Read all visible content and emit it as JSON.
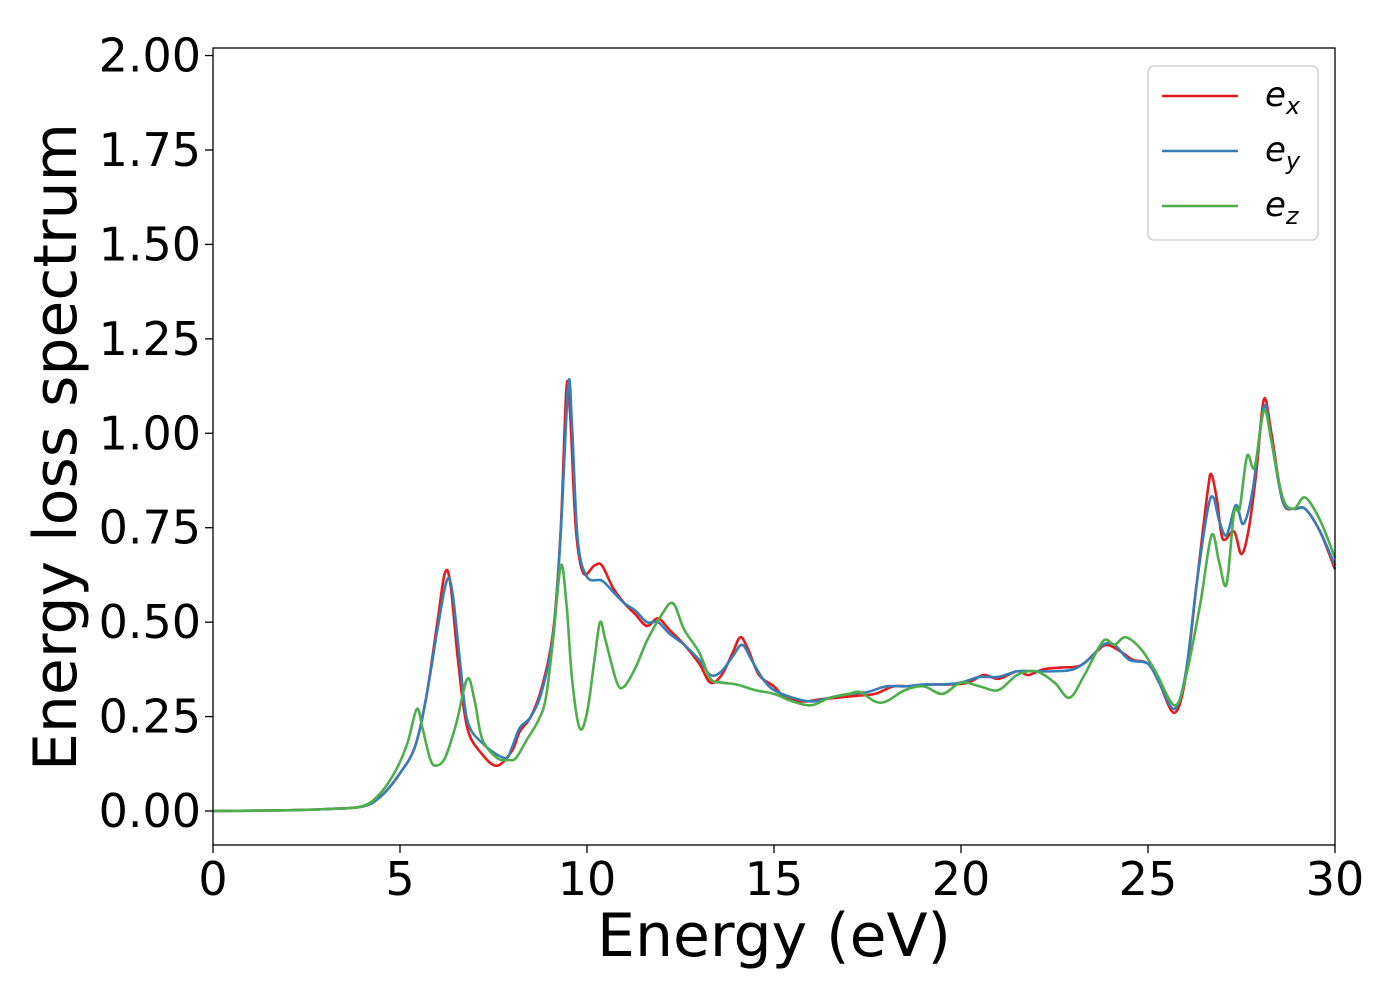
{
  "chart_data": {
    "type": "line",
    "xlabel": "Energy (eV)",
    "ylabel": "Energy loss spectrum",
    "xlim": [
      0,
      30
    ],
    "ylim": [
      -0.09,
      2.02
    ],
    "xticks": [
      0,
      5,
      10,
      15,
      20,
      25,
      30
    ],
    "xtick_labels": [
      "0",
      "5",
      "10",
      "15",
      "20",
      "25",
      "30"
    ],
    "yticks": [
      0.0,
      0.25,
      0.5,
      0.75,
      1.0,
      1.25,
      1.5,
      1.75,
      2.0
    ],
    "ytick_labels": [
      "0.00",
      "0.25",
      "0.50",
      "0.75",
      "1.00",
      "1.25",
      "1.50",
      "1.75",
      "2.00"
    ],
    "grid": false,
    "legend_position": "top-right",
    "series": [
      {
        "name": "e",
        "subscript": "x",
        "color": "#e41a1c",
        "points": [
          [
            0,
            0
          ],
          [
            2,
            0.002
          ],
          [
            3,
            0.005
          ],
          [
            4,
            0.012
          ],
          [
            4.5,
            0.04
          ],
          [
            5,
            0.1
          ],
          [
            5.4,
            0.17
          ],
          [
            5.7,
            0.3
          ],
          [
            6.0,
            0.5
          ],
          [
            6.2,
            0.63
          ],
          [
            6.35,
            0.6
          ],
          [
            6.55,
            0.4
          ],
          [
            6.8,
            0.22
          ],
          [
            7.2,
            0.15
          ],
          [
            7.6,
            0.12
          ],
          [
            8.0,
            0.16
          ],
          [
            8.2,
            0.21
          ],
          [
            8.5,
            0.25
          ],
          [
            8.8,
            0.33
          ],
          [
            9.1,
            0.48
          ],
          [
            9.3,
            0.75
          ],
          [
            9.45,
            1.12
          ],
          [
            9.55,
            1.05
          ],
          [
            9.7,
            0.75
          ],
          [
            9.9,
            0.63
          ],
          [
            10.2,
            0.65
          ],
          [
            10.4,
            0.65
          ],
          [
            10.7,
            0.59
          ],
          [
            11.0,
            0.55
          ],
          [
            11.3,
            0.52
          ],
          [
            11.6,
            0.49
          ],
          [
            11.9,
            0.51
          ],
          [
            12.2,
            0.48
          ],
          [
            12.6,
            0.44
          ],
          [
            13.0,
            0.39
          ],
          [
            13.3,
            0.34
          ],
          [
            13.6,
            0.36
          ],
          [
            13.9,
            0.42
          ],
          [
            14.1,
            0.46
          ],
          [
            14.3,
            0.43
          ],
          [
            14.6,
            0.36
          ],
          [
            15.0,
            0.33
          ],
          [
            15.3,
            0.3
          ],
          [
            15.8,
            0.29
          ],
          [
            16.2,
            0.295
          ],
          [
            16.7,
            0.3
          ],
          [
            17.2,
            0.305
          ],
          [
            17.7,
            0.31
          ],
          [
            18.2,
            0.33
          ],
          [
            18.7,
            0.33
          ],
          [
            19.2,
            0.335
          ],
          [
            19.7,
            0.335
          ],
          [
            20.2,
            0.34
          ],
          [
            20.6,
            0.36
          ],
          [
            21.0,
            0.35
          ],
          [
            21.5,
            0.37
          ],
          [
            21.8,
            0.36
          ],
          [
            22.2,
            0.375
          ],
          [
            22.7,
            0.38
          ],
          [
            23.2,
            0.385
          ],
          [
            23.6,
            0.42
          ],
          [
            23.9,
            0.44
          ],
          [
            24.3,
            0.42
          ],
          [
            24.6,
            0.4
          ],
          [
            25.0,
            0.39
          ],
          [
            25.3,
            0.34
          ],
          [
            25.7,
            0.26
          ],
          [
            26.0,
            0.35
          ],
          [
            26.3,
            0.6
          ],
          [
            26.6,
            0.85
          ],
          [
            26.7,
            0.89
          ],
          [
            26.85,
            0.82
          ],
          [
            27.0,
            0.72
          ],
          [
            27.3,
            0.74
          ],
          [
            27.5,
            0.68
          ],
          [
            27.7,
            0.75
          ],
          [
            27.9,
            0.9
          ],
          [
            28.1,
            1.09
          ],
          [
            28.3,
            1.0
          ],
          [
            28.6,
            0.82
          ],
          [
            28.9,
            0.8
          ],
          [
            29.2,
            0.8
          ],
          [
            29.6,
            0.74
          ],
          [
            30.0,
            0.64
          ]
        ]
      },
      {
        "name": "e",
        "subscript": "y",
        "color": "#377eb8",
        "points": [
          [
            0,
            0
          ],
          [
            2,
            0.002
          ],
          [
            3,
            0.005
          ],
          [
            4,
            0.012
          ],
          [
            4.5,
            0.04
          ],
          [
            5,
            0.1
          ],
          [
            5.4,
            0.17
          ],
          [
            5.7,
            0.3
          ],
          [
            6.0,
            0.48
          ],
          [
            6.25,
            0.61
          ],
          [
            6.4,
            0.58
          ],
          [
            6.6,
            0.4
          ],
          [
            6.8,
            0.24
          ],
          [
            7.2,
            0.18
          ],
          [
            7.8,
            0.14
          ],
          [
            8.0,
            0.17
          ],
          [
            8.2,
            0.22
          ],
          [
            8.5,
            0.25
          ],
          [
            8.8,
            0.32
          ],
          [
            9.1,
            0.47
          ],
          [
            9.3,
            0.74
          ],
          [
            9.5,
            1.13
          ],
          [
            9.6,
            1.02
          ],
          [
            9.75,
            0.72
          ],
          [
            10.0,
            0.62
          ],
          [
            10.4,
            0.61
          ],
          [
            10.7,
            0.58
          ],
          [
            11.0,
            0.55
          ],
          [
            11.3,
            0.53
          ],
          [
            11.6,
            0.5
          ],
          [
            11.9,
            0.5
          ],
          [
            12.2,
            0.47
          ],
          [
            12.6,
            0.44
          ],
          [
            13.0,
            0.4
          ],
          [
            13.3,
            0.36
          ],
          [
            13.6,
            0.37
          ],
          [
            13.9,
            0.41
          ],
          [
            14.15,
            0.44
          ],
          [
            14.4,
            0.4
          ],
          [
            14.7,
            0.35
          ],
          [
            15.0,
            0.32
          ],
          [
            15.5,
            0.3
          ],
          [
            16.0,
            0.29
          ],
          [
            16.5,
            0.3
          ],
          [
            17.0,
            0.31
          ],
          [
            17.5,
            0.315
          ],
          [
            18.0,
            0.33
          ],
          [
            18.5,
            0.33
          ],
          [
            19.0,
            0.335
          ],
          [
            19.5,
            0.335
          ],
          [
            20.0,
            0.34
          ],
          [
            20.5,
            0.355
          ],
          [
            21.0,
            0.355
          ],
          [
            21.5,
            0.37
          ],
          [
            22.0,
            0.37
          ],
          [
            22.5,
            0.37
          ],
          [
            23.0,
            0.375
          ],
          [
            23.4,
            0.4
          ],
          [
            23.8,
            0.44
          ],
          [
            24.1,
            0.44
          ],
          [
            24.5,
            0.4
          ],
          [
            25.0,
            0.39
          ],
          [
            25.3,
            0.34
          ],
          [
            25.7,
            0.27
          ],
          [
            26.0,
            0.36
          ],
          [
            26.3,
            0.6
          ],
          [
            26.6,
            0.8
          ],
          [
            26.75,
            0.83
          ],
          [
            26.9,
            0.77
          ],
          [
            27.1,
            0.73
          ],
          [
            27.35,
            0.81
          ],
          [
            27.55,
            0.76
          ],
          [
            27.8,
            0.85
          ],
          [
            28.1,
            1.07
          ],
          [
            28.3,
            0.98
          ],
          [
            28.6,
            0.82
          ],
          [
            28.9,
            0.8
          ],
          [
            29.2,
            0.8
          ],
          [
            29.6,
            0.74
          ],
          [
            30.0,
            0.65
          ]
        ]
      },
      {
        "name": "e",
        "subscript": "z",
        "color": "#4daf4a",
        "points": [
          [
            0,
            0
          ],
          [
            2,
            0.002
          ],
          [
            3,
            0.005
          ],
          [
            4,
            0.013
          ],
          [
            4.5,
            0.05
          ],
          [
            4.9,
            0.11
          ],
          [
            5.2,
            0.18
          ],
          [
            5.45,
            0.27
          ],
          [
            5.6,
            0.22
          ],
          [
            5.8,
            0.14
          ],
          [
            5.95,
            0.12
          ],
          [
            6.2,
            0.14
          ],
          [
            6.5,
            0.23
          ],
          [
            6.8,
            0.35
          ],
          [
            7.0,
            0.29
          ],
          [
            7.2,
            0.19
          ],
          [
            7.6,
            0.14
          ],
          [
            7.9,
            0.135
          ],
          [
            8.1,
            0.14
          ],
          [
            8.4,
            0.19
          ],
          [
            8.7,
            0.24
          ],
          [
            8.9,
            0.3
          ],
          [
            9.1,
            0.46
          ],
          [
            9.3,
            0.65
          ],
          [
            9.45,
            0.55
          ],
          [
            9.6,
            0.35
          ],
          [
            9.8,
            0.22
          ],
          [
            10.0,
            0.26
          ],
          [
            10.2,
            0.4
          ],
          [
            10.35,
            0.5
          ],
          [
            10.5,
            0.45
          ],
          [
            10.8,
            0.34
          ],
          [
            11.0,
            0.33
          ],
          [
            11.3,
            0.38
          ],
          [
            11.6,
            0.45
          ],
          [
            12.0,
            0.52
          ],
          [
            12.3,
            0.55
          ],
          [
            12.6,
            0.48
          ],
          [
            13.0,
            0.42
          ],
          [
            13.3,
            0.35
          ],
          [
            13.6,
            0.34
          ],
          [
            14.0,
            0.335
          ],
          [
            14.5,
            0.32
          ],
          [
            15.0,
            0.31
          ],
          [
            15.5,
            0.29
          ],
          [
            16.0,
            0.28
          ],
          [
            16.5,
            0.3
          ],
          [
            17.0,
            0.31
          ],
          [
            17.3,
            0.315
          ],
          [
            17.7,
            0.29
          ],
          [
            18.0,
            0.29
          ],
          [
            18.5,
            0.32
          ],
          [
            19.0,
            0.33
          ],
          [
            19.5,
            0.31
          ],
          [
            20.0,
            0.34
          ],
          [
            20.5,
            0.33
          ],
          [
            21.0,
            0.32
          ],
          [
            21.5,
            0.36
          ],
          [
            22.0,
            0.37
          ],
          [
            22.5,
            0.34
          ],
          [
            22.9,
            0.3
          ],
          [
            23.3,
            0.36
          ],
          [
            23.8,
            0.45
          ],
          [
            24.1,
            0.44
          ],
          [
            24.4,
            0.46
          ],
          [
            24.8,
            0.43
          ],
          [
            25.2,
            0.37
          ],
          [
            25.7,
            0.28
          ],
          [
            26.0,
            0.35
          ],
          [
            26.4,
            0.55
          ],
          [
            26.7,
            0.73
          ],
          [
            26.9,
            0.66
          ],
          [
            27.1,
            0.6
          ],
          [
            27.3,
            0.79
          ],
          [
            27.45,
            0.8
          ],
          [
            27.65,
            0.94
          ],
          [
            27.85,
            0.91
          ],
          [
            28.1,
            1.06
          ],
          [
            28.3,
            0.98
          ],
          [
            28.6,
            0.83
          ],
          [
            28.9,
            0.8
          ],
          [
            29.2,
            0.83
          ],
          [
            29.6,
            0.77
          ],
          [
            30.0,
            0.67
          ]
        ]
      }
    ]
  }
}
